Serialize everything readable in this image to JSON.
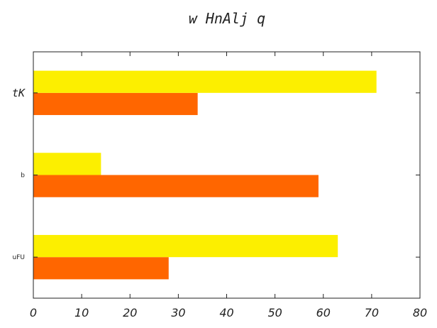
{
  "chart_data": {
    "type": "bar",
    "orientation": "horizontal",
    "title": "w HnAlj  q",
    "xlabel": "",
    "ylabel": "",
    "categories": [
      "uFU",
      "b",
      "tK"
    ],
    "series": [
      {
        "values": [
          28,
          59,
          34
        ],
        "color": "#ff6600"
      },
      {
        "values": [
          63,
          14,
          71
        ],
        "color": "#fcef00"
      }
    ],
    "xlim": [
      0,
      80
    ],
    "xticks": [
      0,
      10,
      20,
      30,
      40,
      50,
      60,
      70,
      80
    ],
    "grid": false,
    "legend": "none"
  }
}
